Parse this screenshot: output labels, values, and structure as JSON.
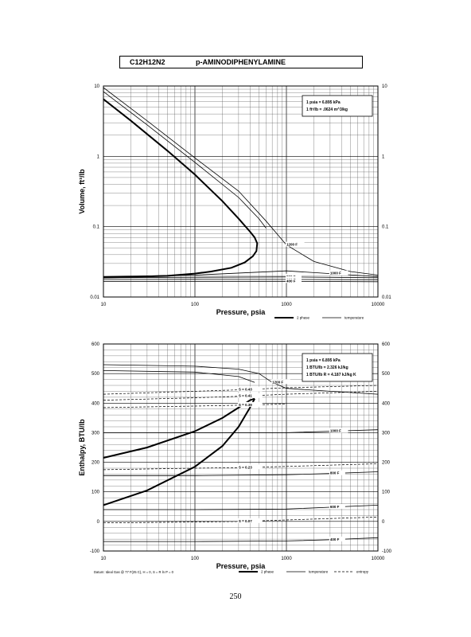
{
  "header": {
    "formula": "C12H12N2",
    "name": "p-AMINODIPHENYLAMINE"
  },
  "page_number": "250",
  "chart_data": [
    {
      "type": "line",
      "xscale": "log",
      "yscale": "log",
      "xlim": [
        10,
        10000
      ],
      "ylim": [
        0.01,
        10
      ],
      "xlabel": "Pressure,  psia",
      "ylabel": "Volume, ft^3/lb",
      "xticks": [
        "10",
        "100",
        "1000",
        "10000"
      ],
      "yticks": [
        "10",
        "1",
        "0.1",
        "0.01"
      ],
      "notes": [
        "1 psia  =  6.895 kPa",
        "1 ft^3/lb  =  .0624 m^3/kg"
      ],
      "legend": [
        "2 phase",
        "temperature"
      ],
      "series": [
        {
          "label": "",
          "style": "2phase",
          "x": [
            10,
            20,
            50,
            100,
            200,
            300,
            400,
            450,
            480,
            470,
            430,
            350,
            250,
            150,
            100,
            50,
            20,
            10
          ],
          "y": [
            6.5,
            3.2,
            1.2,
            0.55,
            0.23,
            0.13,
            0.085,
            0.07,
            0.058,
            0.045,
            0.038,
            0.031,
            0.026,
            0.023,
            0.0215,
            0.02,
            0.0193,
            0.019
          ]
        },
        {
          "label": "1200 F",
          "style": "temp",
          "x": [
            10,
            30,
            100,
            300,
            600,
            1000,
            2000,
            5000,
            10000
          ],
          "y": [
            9.5,
            3.2,
            0.95,
            0.32,
            0.12,
            0.055,
            0.032,
            0.023,
            0.0205
          ]
        },
        {
          "label": "",
          "style": "temp",
          "x": [
            10,
            30,
            100,
            300,
            500,
            600
          ],
          "y": [
            8.3,
            2.8,
            0.82,
            0.26,
            0.13,
            0.095
          ]
        },
        {
          "label": "1000 F",
          "style": "temp",
          "x": [
            10,
            100,
            1000,
            3000,
            10000
          ],
          "y": [
            0.0195,
            0.0205,
            0.0235,
            0.0215,
            0.0195
          ]
        },
        {
          "label": "800 F",
          "style": "temp",
          "x": [
            10,
            100,
            1000,
            10000
          ],
          "y": [
            0.0188,
            0.0191,
            0.0193,
            0.0188
          ]
        },
        {
          "label": "600 F",
          "style": "temp",
          "x": [
            10,
            100,
            1000,
            10000
          ],
          "y": [
            0.0178,
            0.0179,
            0.0178,
            0.0176
          ]
        },
        {
          "label": "400 F",
          "style": "temp",
          "x": [
            10,
            100,
            1000,
            10000
          ],
          "y": [
            0.0167,
            0.0167,
            0.0167,
            0.0165
          ]
        }
      ]
    },
    {
      "type": "line",
      "xscale": "log",
      "yscale": "linear",
      "xlim": [
        10,
        10000
      ],
      "ylim": [
        -100,
        600
      ],
      "xlabel": "Pressure,  psia",
      "ylabel": "Enthalpy, BTU/lb",
      "xticks": [
        "10",
        "100",
        "1000",
        "10000"
      ],
      "yticks": [
        "600",
        "500",
        "400",
        "300",
        "200",
        "100",
        "0",
        "-100"
      ],
      "notes": [
        "1 psia  =  6.895 kPa",
        "1 BTU/lb  =  2.326 kJ/kg",
        "1 BTU/lb R  =  4.187 kJ/kg K"
      ],
      "datum": "Datum: Ideal Gas @ 77 F(25 C),  H = 0,  S = R ln P = 0",
      "legend": [
        "2 phase",
        "temperature",
        "entropy"
      ],
      "series": [
        {
          "label": "",
          "style": "2phase",
          "x": [
            10,
            30,
            100,
            200,
            300,
            400,
            450
          ],
          "y": [
            215,
            250,
            305,
            350,
            385,
            410,
            415
          ]
        },
        {
          "label": "",
          "style": "2phase",
          "x": [
            10,
            30,
            100,
            200,
            300,
            400,
            450
          ],
          "y": [
            55,
            105,
            185,
            255,
            320,
            385,
            415
          ]
        },
        {
          "label": "1200 F",
          "style": "temp",
          "x": [
            10,
            100,
            300,
            500,
            700,
            1000,
            3000,
            10000
          ],
          "y": [
            530,
            525,
            515,
            500,
            470,
            450,
            440,
            430
          ]
        },
        {
          "label": "",
          "style": "temp",
          "x": [
            10,
            100,
            300,
            450
          ],
          "y": [
            510,
            505,
            490,
            470
          ]
        },
        {
          "label": "1000 F",
          "style": "temp",
          "x": [
            10,
            100,
            1000,
            3000,
            10000
          ],
          "y": [
            300,
            300,
            300,
            305,
            310
          ]
        },
        {
          "label": "800 F",
          "style": "temp",
          "x": [
            10,
            100,
            1000,
            3000,
            10000
          ],
          "y": [
            155,
            155,
            158,
            162,
            168
          ]
        },
        {
          "label": "600 F",
          "style": "temp",
          "x": [
            10,
            100,
            1000,
            3000,
            10000
          ],
          "y": [
            40,
            40,
            42,
            48,
            55
          ]
        },
        {
          "label": "400 F",
          "style": "temp",
          "x": [
            10,
            100,
            1000,
            3000,
            10000
          ],
          "y": [
            -68,
            -68,
            -66,
            -62,
            -55
          ]
        },
        {
          "label": "S = 0.43",
          "style": "entropy",
          "x": [
            10,
            100,
            300,
            1000,
            10000
          ],
          "y": [
            430,
            440,
            445,
            452,
            460
          ]
        },
        {
          "label": "S = 0.41",
          "style": "entropy",
          "x": [
            10,
            100,
            300,
            1000,
            10000
          ],
          "y": [
            410,
            418,
            423,
            430,
            440
          ]
        },
        {
          "label": "S = 0.39",
          "style": "entropy",
          "x": [
            10,
            100,
            300,
            600,
            1000
          ],
          "y": [
            385,
            390,
            393,
            395,
            397
          ]
        },
        {
          "label": "S = 0.23",
          "style": "entropy",
          "x": [
            10,
            100,
            300,
            1000,
            10000
          ],
          "y": [
            175,
            180,
            182,
            186,
            195
          ]
        },
        {
          "label": "S = 0.07",
          "style": "entropy",
          "x": [
            10,
            100,
            300,
            1000,
            10000
          ],
          "y": [
            -5,
            -2,
            0,
            5,
            15
          ]
        }
      ]
    }
  ]
}
